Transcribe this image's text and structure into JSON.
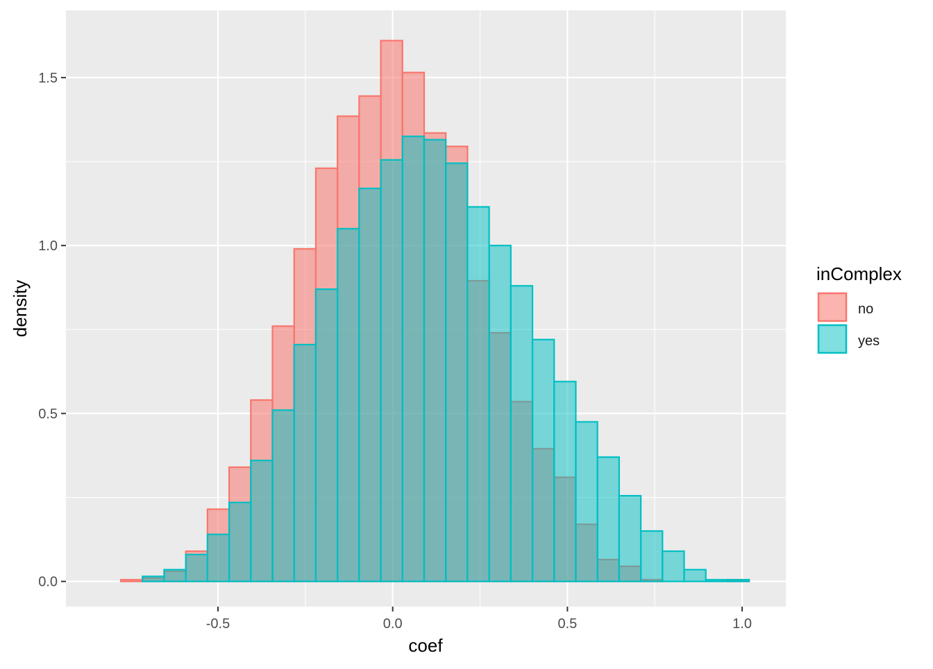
{
  "chart_data": {
    "type": "histogram",
    "title": "",
    "xlabel": "coef",
    "ylabel": "density",
    "xlim": [
      -0.935,
      1.125
    ],
    "ylim": [
      -0.075,
      1.7
    ],
    "x_ticks": [
      -0.5,
      0.0,
      0.5,
      1.0
    ],
    "x_tick_labels": [
      "-0.5",
      "0.0",
      "0.5",
      "1.0"
    ],
    "y_ticks": [
      0.0,
      0.5,
      1.0,
      1.5
    ],
    "y_tick_labels": [
      "0.0",
      "0.5",
      "1.0",
      "1.5"
    ],
    "grid": true,
    "bin_edges": [
      -0.84,
      -0.778,
      -0.716,
      -0.654,
      -0.592,
      -0.53,
      -0.468,
      -0.406,
      -0.344,
      -0.282,
      -0.22,
      -0.158,
      -0.096,
      -0.034,
      0.028,
      0.09,
      0.152,
      0.214,
      0.276,
      0.338,
      0.4,
      0.462,
      0.524,
      0.586,
      0.648,
      0.71,
      0.772,
      0.834,
      0.896,
      0.958,
      1.02
    ],
    "series": [
      {
        "name": "no",
        "color": "#F8766D",
        "values": [
          0.0,
          0.005,
          0.01,
          0.03,
          0.09,
          0.215,
          0.34,
          0.54,
          0.76,
          0.99,
          1.23,
          1.385,
          1.445,
          1.61,
          1.515,
          1.335,
          1.295,
          0.895,
          0.74,
          0.535,
          0.395,
          0.31,
          0.17,
          0.065,
          0.045,
          0.005,
          0.0,
          0.0,
          0.0,
          0.005
        ]
      },
      {
        "name": "yes",
        "color": "#00BFC4",
        "values": [
          0.0,
          0.0,
          0.015,
          0.035,
          0.08,
          0.14,
          0.235,
          0.36,
          0.51,
          0.705,
          0.87,
          1.05,
          1.17,
          1.255,
          1.325,
          1.315,
          1.245,
          1.115,
          1.0,
          0.88,
          0.72,
          0.595,
          0.475,
          0.37,
          0.255,
          0.15,
          0.09,
          0.035,
          0.005,
          0.005
        ]
      }
    ],
    "legend": {
      "title": "inComplex",
      "placement": "right",
      "entries": [
        "no",
        "yes"
      ]
    }
  }
}
